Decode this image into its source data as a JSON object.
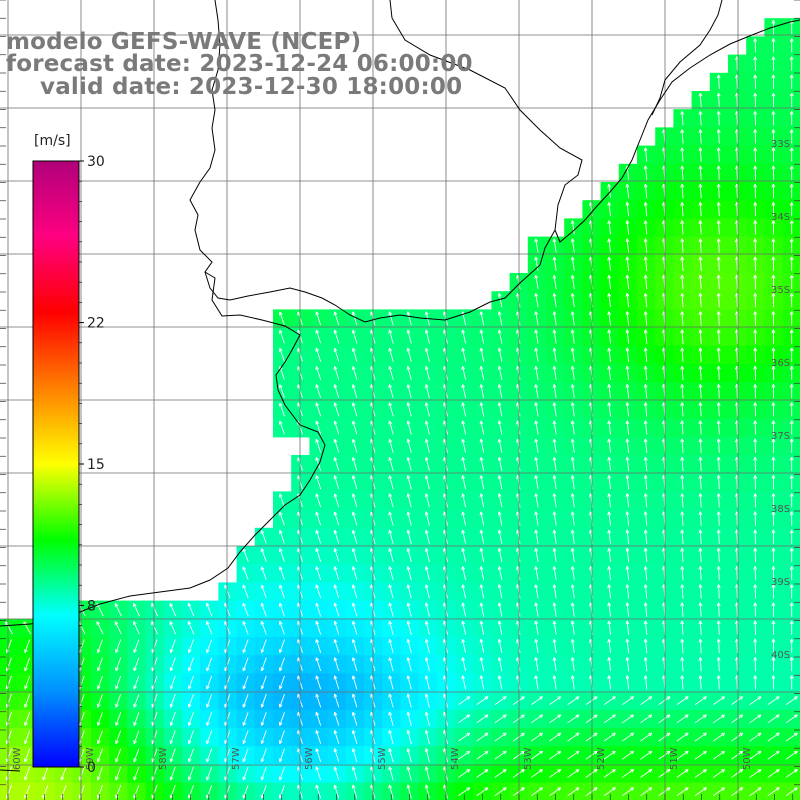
{
  "title": {
    "model": "modelo GEFS-WAVE (NCEP)",
    "forecast": "forecast date: 2023-12-24 06:00:00",
    "valid": "valid date: 2023-12-30 18:00:00"
  },
  "colorbar": {
    "unit": "[m/s]",
    "ticks": [
      {
        "value": 30,
        "label": "30"
      },
      {
        "value": 22,
        "label": "22"
      },
      {
        "value": 15,
        "label": "15"
      },
      {
        "value": 8,
        "label": "8"
      },
      {
        "value": 0,
        "label": "0"
      }
    ],
    "min": 0,
    "max": 30,
    "colors": [
      "#0000ff",
      "#0090ff",
      "#00ffff",
      "#00ff00",
      "#ffff00",
      "#ff8000",
      "#ff0000",
      "#ff0080",
      "#b0007a"
    ]
  },
  "lat_labels": [
    "33S",
    "34S",
    "35S",
    "36S",
    "37S",
    "38S",
    "39S",
    "40S"
  ],
  "lon_labels": [
    "60W",
    "59W",
    "58W",
    "57W",
    "56W",
    "55W",
    "54W",
    "53W",
    "52W",
    "51W",
    "50W"
  ],
  "colors": {
    "land": "#ffffff",
    "coast": "#000000",
    "grid": "#6e6e6e",
    "arrow": "#ffffff",
    "title": "#7a7a7a"
  }
}
